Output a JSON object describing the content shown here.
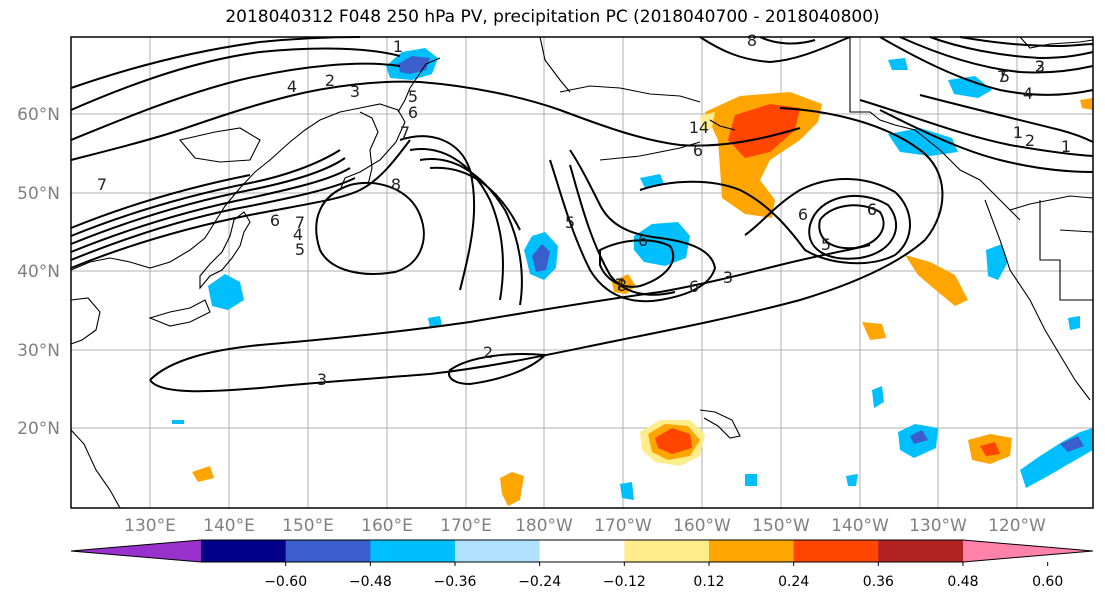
{
  "title": "2018040312 F048 250 hPa PV, precipitation PC (2018040700 - 2018040800)",
  "lon_labels": [
    "130°E",
    "140°E",
    "150°E",
    "160°E",
    "170°E",
    "180°W",
    "170°W",
    "160°W",
    "150°W",
    "140°W",
    "130°W",
    "120°W"
  ],
  "lat_labels": [
    "60°N",
    "50°N",
    "40°N",
    "30°N",
    "20°N"
  ],
  "contour_labels": [
    "1",
    "2",
    "3",
    "4",
    "5",
    "6",
    "7",
    "8",
    "7",
    "6",
    "5",
    "4",
    "3",
    "2",
    "1",
    "6",
    "7",
    "8",
    "6",
    "5",
    "6",
    "7",
    "2",
    "1",
    "3",
    "4",
    "5",
    "6",
    "7",
    "6",
    "5",
    "4",
    "3",
    "2",
    "1",
    "6",
    "8"
  ],
  "colorbar": {
    "ticks": [
      "−0.60",
      "−0.48",
      "−0.36",
      "−0.24",
      "−0.12",
      "0.12",
      "0.24",
      "0.36",
      "0.48",
      "0.60"
    ],
    "colors": [
      "#9932cc",
      "#00008b",
      "#3a5fcd",
      "#00bfff",
      "#b0e2ff",
      "#ffffff",
      "#ffec8b",
      "#ffa500",
      "#ff4500",
      "#b22222",
      "#ff82ab"
    ]
  },
  "colors": {
    "grid": "#b0b0b0",
    "coast": "#000000",
    "contour": "#000000",
    "tick_label": "#808080"
  }
}
